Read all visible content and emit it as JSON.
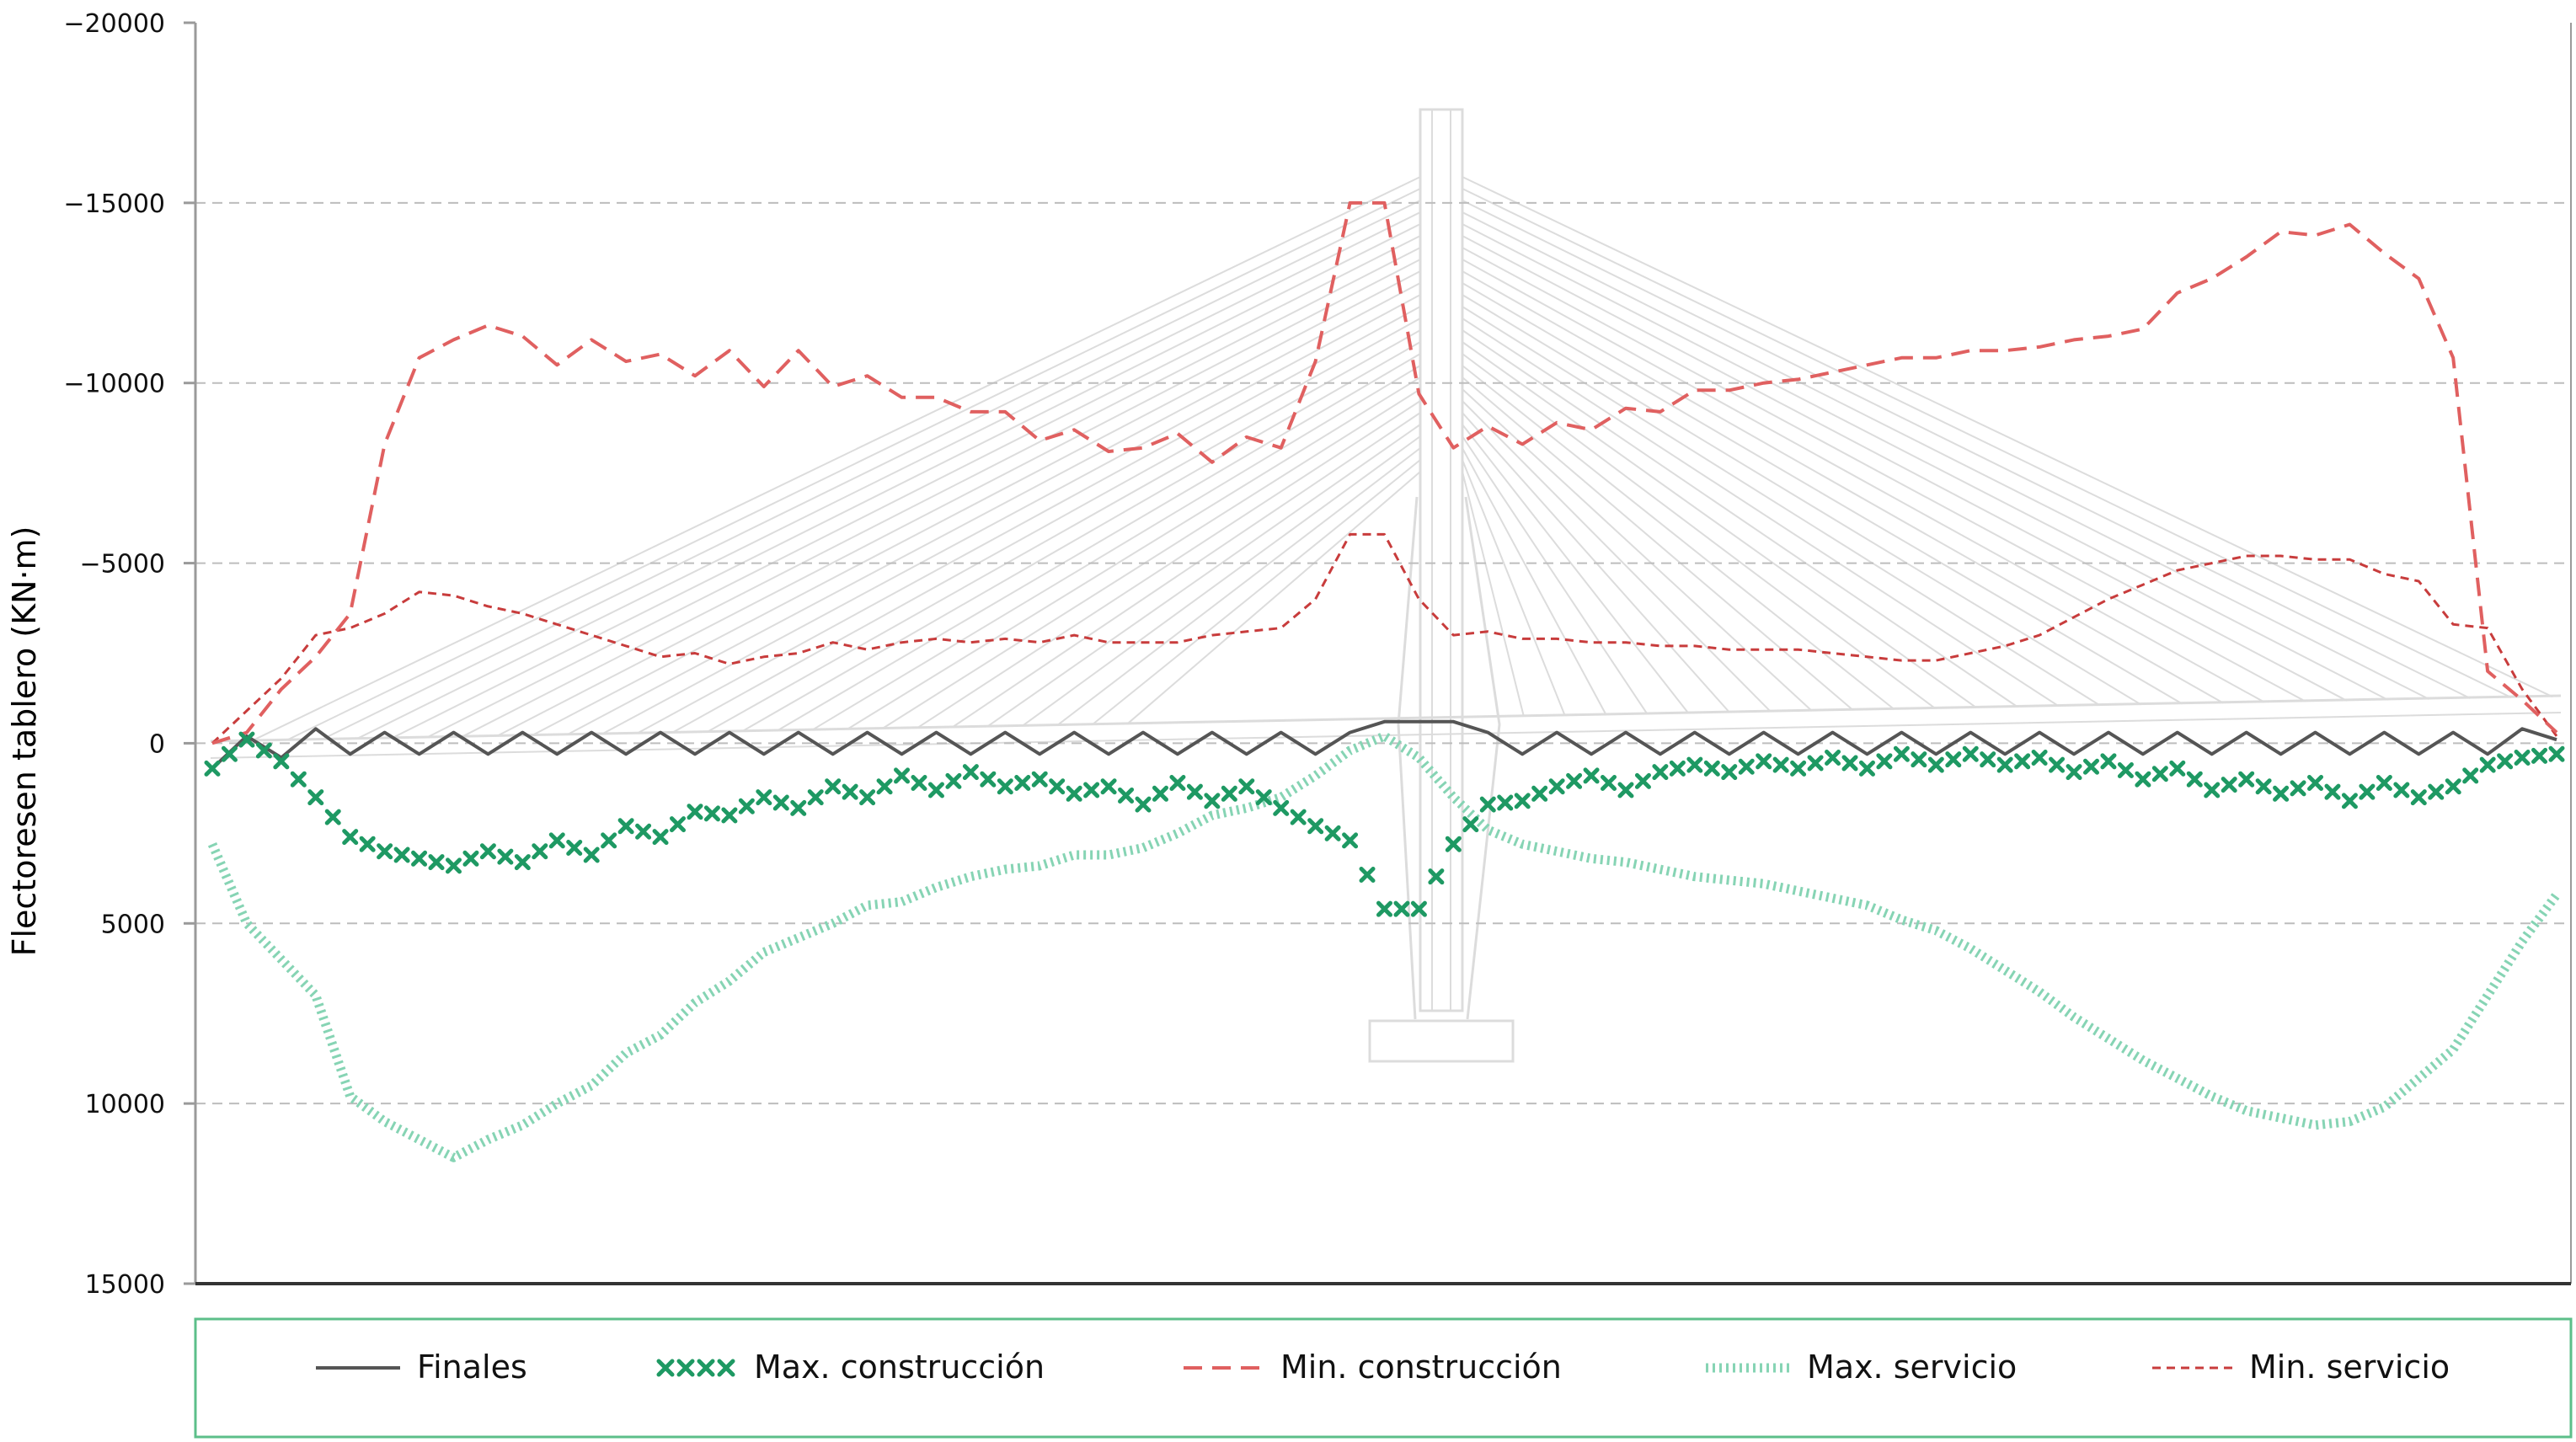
{
  "chart_data": {
    "type": "line",
    "title": "",
    "xlabel": "",
    "ylabel": "Flectoresen tablero (KN·m)",
    "ylim": [
      -20000,
      15000
    ],
    "y_inverted": true,
    "yticks": [
      -20000,
      -15000,
      -10000,
      -5000,
      0,
      5000,
      10000,
      15000
    ],
    "grid": "horizontal dashed",
    "legend": "bottom",
    "background": "cable-stayed bridge elevation (light grey)",
    "xlim": [
      0,
      68
    ],
    "series": [
      {
        "name": "Finales",
        "style": "solid",
        "color": "#555555",
        "x": [
          0,
          1,
          2,
          3,
          4,
          5,
          6,
          7,
          8,
          9,
          10,
          11,
          12,
          13,
          14,
          15,
          16,
          17,
          18,
          19,
          20,
          21,
          22,
          23,
          24,
          25,
          26,
          27,
          28,
          29,
          30,
          31,
          32,
          33,
          34,
          35,
          36,
          37,
          38,
          39,
          40,
          41,
          42,
          43,
          44,
          45,
          46,
          47,
          48,
          49,
          50,
          51,
          52,
          53,
          54,
          55,
          56,
          57,
          58,
          59,
          60,
          61,
          62,
          63,
          64,
          65,
          66,
          67,
          68
        ],
        "values": [
          700,
          -200,
          400,
          -400,
          300,
          -300,
          300,
          -300,
          300,
          -300,
          300,
          -300,
          300,
          -300,
          300,
          -300,
          300,
          -300,
          300,
          -300,
          300,
          -300,
          300,
          -300,
          300,
          -300,
          300,
          -300,
          300,
          -300,
          300,
          -300,
          300,
          -300,
          -600,
          -600,
          -600,
          -300,
          300,
          -300,
          300,
          -300,
          300,
          -300,
          300,
          -300,
          300,
          -300,
          300,
          -300,
          300,
          -300,
          300,
          -300,
          300,
          -300,
          300,
          -300,
          300,
          -300,
          300,
          -300,
          300,
          -300,
          300,
          -300,
          300,
          -400,
          -100
        ]
      },
      {
        "name": "Max. construcción",
        "style": "x-markers",
        "color": "#1e9963",
        "x": [
          0,
          1,
          2,
          3,
          4,
          5,
          6,
          7,
          8,
          9,
          10,
          11,
          12,
          13,
          14,
          15,
          16,
          17,
          18,
          19,
          20,
          21,
          22,
          23,
          24,
          25,
          26,
          27,
          28,
          29,
          30,
          31,
          32,
          33,
          34,
          35,
          36,
          37,
          38,
          39,
          40,
          41,
          42,
          43,
          44,
          45,
          46,
          47,
          48,
          49,
          50,
          51,
          52,
          53,
          54,
          55,
          56,
          57,
          58,
          59,
          60,
          61,
          62,
          63,
          64,
          65,
          66,
          67,
          68
        ],
        "values": [
          700,
          -100,
          500,
          1500,
          2600,
          3000,
          3200,
          3400,
          3000,
          3300,
          2700,
          3100,
          2300,
          2600,
          1900,
          2000,
          1500,
          1800,
          1200,
          1500,
          900,
          1300,
          800,
          1200,
          1000,
          1400,
          1200,
          1700,
          1100,
          1600,
          1200,
          1800,
          2300,
          2700,
          4600,
          4600,
          2800,
          1700,
          1600,
          1200,
          900,
          1300,
          800,
          600,
          800,
          500,
          700,
          400,
          700,
          300,
          600,
          300,
          600,
          400,
          800,
          500,
          1000,
          700,
          1300,
          1000,
          1400,
          1100,
          1600,
          1100,
          1500,
          1200,
          600,
          400,
          300
        ]
      },
      {
        "name": "Min. construcción",
        "style": "dashed",
        "color": "#e06060",
        "x": [
          0,
          1,
          2,
          3,
          4,
          5,
          6,
          7,
          8,
          9,
          10,
          11,
          12,
          13,
          14,
          15,
          16,
          17,
          18,
          19,
          20,
          21,
          22,
          23,
          24,
          25,
          26,
          27,
          28,
          29,
          30,
          31,
          32,
          33,
          34,
          35,
          36,
          37,
          38,
          39,
          40,
          41,
          42,
          43,
          44,
          45,
          46,
          47,
          48,
          49,
          50,
          51,
          52,
          53,
          54,
          55,
          56,
          57,
          58,
          59,
          60,
          61,
          62,
          63,
          64,
          65,
          66,
          67,
          68
        ],
        "values": [
          0,
          -300,
          -1500,
          -2400,
          -3600,
          -8300,
          -10700,
          -11200,
          -11600,
          -11300,
          -10500,
          -11200,
          -10600,
          -10800,
          -10200,
          -10900,
          -9900,
          -10900,
          -9900,
          -10200,
          -9600,
          -9600,
          -9200,
          -9200,
          -8400,
          -8700,
          -8100,
          -8200,
          -8600,
          -7800,
          -8500,
          -8200,
          -10600,
          -15000,
          -15000,
          -9700,
          -8200,
          -8800,
          -8300,
          -8900,
          -8700,
          -9300,
          -9200,
          -9800,
          -9800,
          -10000,
          -10100,
          -10300,
          -10500,
          -10700,
          -10700,
          -10900,
          -10900,
          -11000,
          -11200,
          -11300,
          -11500,
          -12500,
          -12900,
          -13500,
          -14200,
          -14100,
          -14400,
          -13600,
          -12900,
          -10700,
          -2000,
          -1200,
          -300
        ]
      },
      {
        "name": "Max. servicio",
        "style": "dotted-thick",
        "color": "#86d4b4",
        "x": [
          0,
          1,
          2,
          3,
          4,
          5,
          6,
          7,
          8,
          9,
          10,
          11,
          12,
          13,
          14,
          15,
          16,
          17,
          18,
          19,
          20,
          21,
          22,
          23,
          24,
          25,
          26,
          27,
          28,
          29,
          30,
          31,
          32,
          33,
          34,
          35,
          36,
          37,
          38,
          39,
          40,
          41,
          42,
          43,
          44,
          45,
          46,
          47,
          48,
          49,
          50,
          51,
          52,
          53,
          54,
          55,
          56,
          57,
          58,
          59,
          60,
          61,
          62,
          63,
          64,
          65,
          66,
          67,
          68
        ],
        "values": [
          2800,
          5000,
          6000,
          7000,
          9800,
          10500,
          11000,
          11500,
          11000,
          10600,
          10000,
          9500,
          8600,
          8100,
          7200,
          6600,
          5800,
          5400,
          5000,
          4500,
          4400,
          4000,
          3700,
          3500,
          3400,
          3100,
          3100,
          2900,
          2500,
          2000,
          1800,
          1500,
          900,
          200,
          -200,
          400,
          1500,
          2400,
          2800,
          3000,
          3200,
          3300,
          3500,
          3700,
          3800,
          3900,
          4100,
          4300,
          4500,
          4900,
          5200,
          5700,
          6300,
          6900,
          7600,
          8200,
          8800,
          9300,
          9800,
          10200,
          10400,
          10600,
          10500,
          10100,
          9300,
          8500,
          7000,
          5500,
          4200
        ]
      },
      {
        "name": "Min. servicio",
        "style": "dashed-fine",
        "color": "#c83c3c",
        "x": [
          0,
          1,
          2,
          3,
          4,
          5,
          6,
          7,
          8,
          9,
          10,
          11,
          12,
          13,
          14,
          15,
          16,
          17,
          18,
          19,
          20,
          21,
          22,
          23,
          24,
          25,
          26,
          27,
          28,
          29,
          30,
          31,
          32,
          33,
          34,
          35,
          36,
          37,
          38,
          39,
          40,
          41,
          42,
          43,
          44,
          45,
          46,
          47,
          48,
          49,
          50,
          51,
          52,
          53,
          54,
          55,
          56,
          57,
          58,
          59,
          60,
          61,
          62,
          63,
          64,
          65,
          66,
          67,
          68
        ],
        "values": [
          0,
          -900,
          -1800,
          -3000,
          -3200,
          -3600,
          -4200,
          -4100,
          -3800,
          -3600,
          -3300,
          -3000,
          -2700,
          -2400,
          -2500,
          -2200,
          -2400,
          -2500,
          -2800,
          -2600,
          -2800,
          -2900,
          -2800,
          -2900,
          -2800,
          -3000,
          -2800,
          -2800,
          -2800,
          -3000,
          -3100,
          -3200,
          -4000,
          -5800,
          -5800,
          -4000,
          -3000,
          -3100,
          -2900,
          -2900,
          -2800,
          -2800,
          -2700,
          -2700,
          -2600,
          -2600,
          -2600,
          -2500,
          -2400,
          -2300,
          -2300,
          -2500,
          -2700,
          -3000,
          -3500,
          -4000,
          -4400,
          -4800,
          -5000,
          -5200,
          -5200,
          -5100,
          -5100,
          -4700,
          -4500,
          -3300,
          -3200,
          -1500,
          -200
        ]
      }
    ]
  }
}
